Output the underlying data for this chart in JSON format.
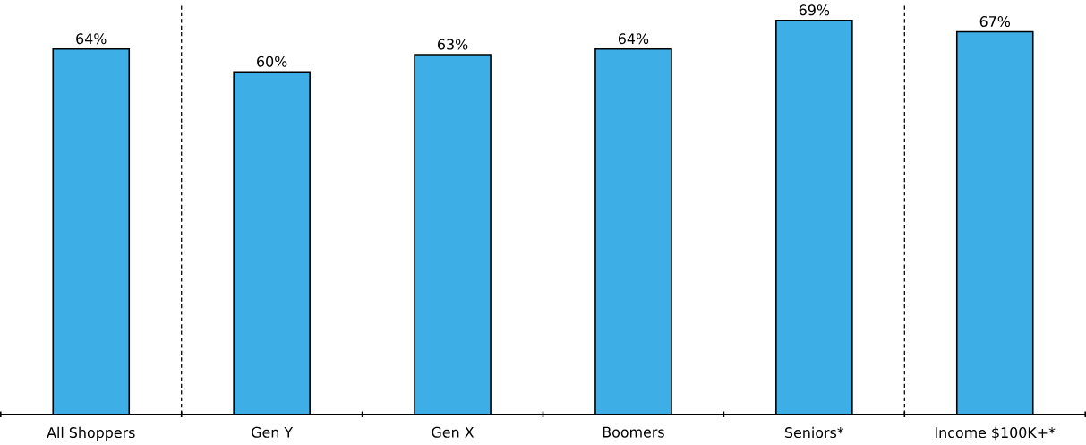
{
  "chart_data": {
    "type": "bar",
    "categories": [
      "All Shoppers",
      "Gen Y",
      "Gen X",
      "Boomers",
      "Seniors*",
      "Income $100K+*"
    ],
    "values": [
      64,
      60,
      63,
      64,
      69,
      67
    ],
    "color": "#3daee6",
    "ylim": [
      0,
      72
    ],
    "tick_labels": "x",
    "data_labels": true,
    "value_labels": [
      "64%",
      "60%",
      "63%",
      "64%",
      "69%",
      "67%"
    ]
  }
}
